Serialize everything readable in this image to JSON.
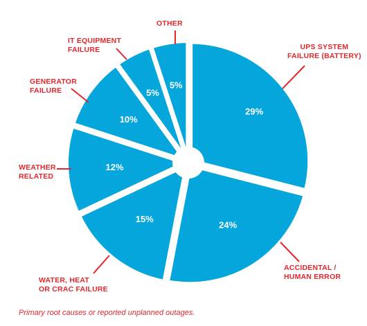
{
  "chart_data": {
    "type": "pie",
    "style": "exploded donut with small center hole",
    "slices": [
      {
        "label": "UPS SYSTEM\nFAILURE (BATTERY)",
        "value": 29,
        "value_label": "29%"
      },
      {
        "label": "ACCIDENTAL /\nHUMAN ERROR",
        "value": 24,
        "value_label": "24%"
      },
      {
        "label": "WATER, HEAT\nOR CRAC FAILURE",
        "value": 15,
        "value_label": "15%"
      },
      {
        "label": "WEATHER\nRELATED",
        "value": 12,
        "value_label": "12%"
      },
      {
        "label": "GENERATOR\nFAILURE",
        "value": 10,
        "value_label": "10%"
      },
      {
        "label": "IT EQUIPMENT\nFAILURE",
        "value": 5,
        "value_label": "5%"
      },
      {
        "label": "OTHER",
        "value": 5,
        "value_label": "5%"
      }
    ],
    "colors": {
      "slice": "#05a6dc",
      "label_text": "#e3262c",
      "leader": "#e3262c",
      "value_text": "#ffffff"
    }
  },
  "footnote": "Primary root causes or reported unplanned outages."
}
